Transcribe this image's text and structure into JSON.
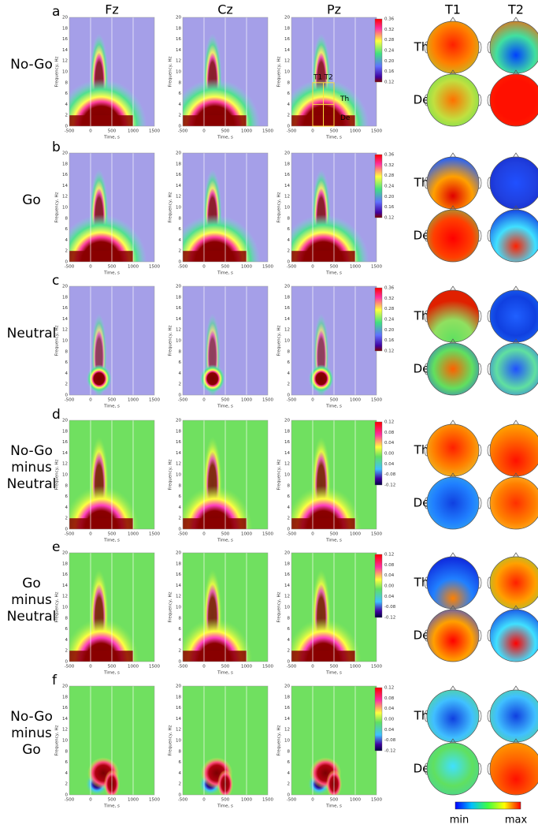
{
  "columns": [
    "Fz",
    "Cz",
    "Pz"
  ],
  "topo_columns": [
    "T1",
    "T2"
  ],
  "axes": {
    "xlabel": "Time, s",
    "ylabel": "Frequency, Hz",
    "xticks": [
      "-500",
      "0",
      "500",
      "1000",
      "1500"
    ],
    "yticks": [
      "0",
      "2",
      "4",
      "6",
      "8",
      "10",
      "12",
      "14",
      "16",
      "18",
      "20"
    ]
  },
  "rows": [
    {
      "letter": "a",
      "label": [
        "No-Go"
      ],
      "colorbar": [
        "0.36",
        "0.32",
        "0.28",
        "0.24",
        "0.20",
        "0.16",
        "0.12"
      ],
      "topo_rows": [
        "Th",
        "De"
      ]
    },
    {
      "letter": "b",
      "label": [
        "Go"
      ],
      "colorbar": [
        "0.36",
        "0.32",
        "0.28",
        "0.24",
        "0.20",
        "0.16",
        "0.12"
      ],
      "topo_rows": [
        "Th",
        "De"
      ]
    },
    {
      "letter": "c",
      "label": [
        "Neutral"
      ],
      "colorbar": [
        "0.36",
        "0.32",
        "0.28",
        "0.24",
        "0.20",
        "0.16",
        "0.12"
      ],
      "topo_rows": [
        "Th",
        "De"
      ]
    },
    {
      "letter": "d",
      "label": [
        "No-Go",
        "minus",
        "Neutral"
      ],
      "colorbar": [
        "0.12",
        "0.08",
        "0.04",
        "0.00",
        "0.04",
        "-0.08",
        "-0.12"
      ],
      "topo_rows": [
        "Th",
        "De"
      ]
    },
    {
      "letter": "e",
      "label": [
        "Go",
        "minus",
        "Neutral"
      ],
      "colorbar": [
        "0.12",
        "0.08",
        "0.04",
        "0.00",
        "0.04",
        "-0.08",
        "-0.12"
      ],
      "topo_rows": [
        "Th",
        "De"
      ]
    },
    {
      "letter": "f",
      "label": [
        "No-Go",
        "minus",
        "Go"
      ],
      "colorbar": [
        "0.12",
        "0.08",
        "0.04",
        "0.00",
        "0.04",
        "-0.08",
        "-0.12"
      ],
      "topo_rows": [
        "Th",
        "De"
      ]
    }
  ],
  "annotations": {
    "t1": "T1",
    "t2": "T2",
    "th": "Th",
    "de": "De"
  },
  "colorscale": {
    "min": "min",
    "max": "max"
  }
}
